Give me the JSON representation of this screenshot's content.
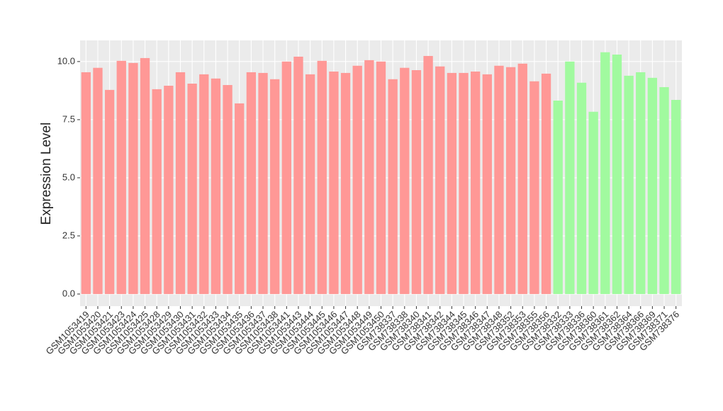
{
  "chart_data": {
    "type": "bar",
    "y_label": "Expression Level",
    "categories": [
      "GSM1053419",
      "GSM1053420",
      "GSM1053421",
      "GSM1053423",
      "GSM1053424",
      "GSM1053425",
      "GSM1053428",
      "GSM1053429",
      "GSM1053430",
      "GSM1053431",
      "GSM1053432",
      "GSM1053433",
      "GSM1053434",
      "GSM1053435",
      "GSM1053436",
      "GSM1053437",
      "GSM1053438",
      "GSM1053441",
      "GSM1053443",
      "GSM1053444",
      "GSM1053445",
      "GSM1053446",
      "GSM1053447",
      "GSM1053448",
      "GSM1053449",
      "GSM1053450",
      "GSM738337",
      "GSM738338",
      "GSM738340",
      "GSM738341",
      "GSM738342",
      "GSM738344",
      "GSM738345",
      "GSM738346",
      "GSM738347",
      "GSM738348",
      "GSM738352",
      "GSM738353",
      "GSM738355",
      "GSM738356",
      "GSM738332",
      "GSM738333",
      "GSM738336",
      "GSM738360",
      "GSM738361",
      "GSM738362",
      "GSM738364",
      "GSM738366",
      "GSM738369",
      "GSM738371",
      "GSM738376"
    ],
    "values": [
      9.54,
      9.73,
      8.78,
      10.03,
      9.94,
      10.15,
      8.81,
      8.96,
      9.54,
      9.05,
      9.45,
      9.27,
      8.99,
      8.2,
      9.54,
      9.51,
      9.24,
      10.0,
      10.21,
      9.45,
      10.03,
      9.57,
      9.51,
      9.82,
      10.06,
      10.0,
      9.24,
      9.73,
      9.63,
      10.24,
      9.79,
      9.51,
      9.51,
      9.57,
      9.45,
      9.82,
      9.76,
      9.91,
      9.15,
      9.48,
      8.32,
      10.0,
      9.09,
      7.84,
      10.4,
      10.3,
      9.39,
      9.54,
      9.3,
      8.9,
      8.35
    ],
    "bar_colors": [
      "#ff9896",
      "#ff9896",
      "#ff9896",
      "#ff9896",
      "#ff9896",
      "#ff9896",
      "#ff9896",
      "#ff9896",
      "#ff9896",
      "#ff9896",
      "#ff9896",
      "#ff9896",
      "#ff9896",
      "#ff9896",
      "#ff9896",
      "#ff9896",
      "#ff9896",
      "#ff9896",
      "#ff9896",
      "#ff9896",
      "#ff9896",
      "#ff9896",
      "#ff9896",
      "#ff9896",
      "#ff9896",
      "#ff9896",
      "#ff9896",
      "#ff9896",
      "#ff9896",
      "#ff9896",
      "#ff9896",
      "#ff9896",
      "#ff9896",
      "#ff9896",
      "#ff9896",
      "#ff9896",
      "#ff9896",
      "#ff9896",
      "#ff9896",
      "#ff9896",
      "#a1fa9f",
      "#a1fa9f",
      "#a1fa9f",
      "#a1fa9f",
      "#a1fa9f",
      "#a1fa9f",
      "#a1fa9f",
      "#a1fa9f",
      "#a1fa9f",
      "#a1fa9f",
      "#a1fa9f"
    ],
    "ylim": [
      -0.52,
      10.91
    ],
    "yticks": [
      {
        "value": 0,
        "label": "0.0"
      },
      2.5,
      {
        "value": 5,
        "label": "5.0"
      },
      7.5,
      {
        "value": 10,
        "label": "10.0"
      }
    ],
    "grid": true
  }
}
